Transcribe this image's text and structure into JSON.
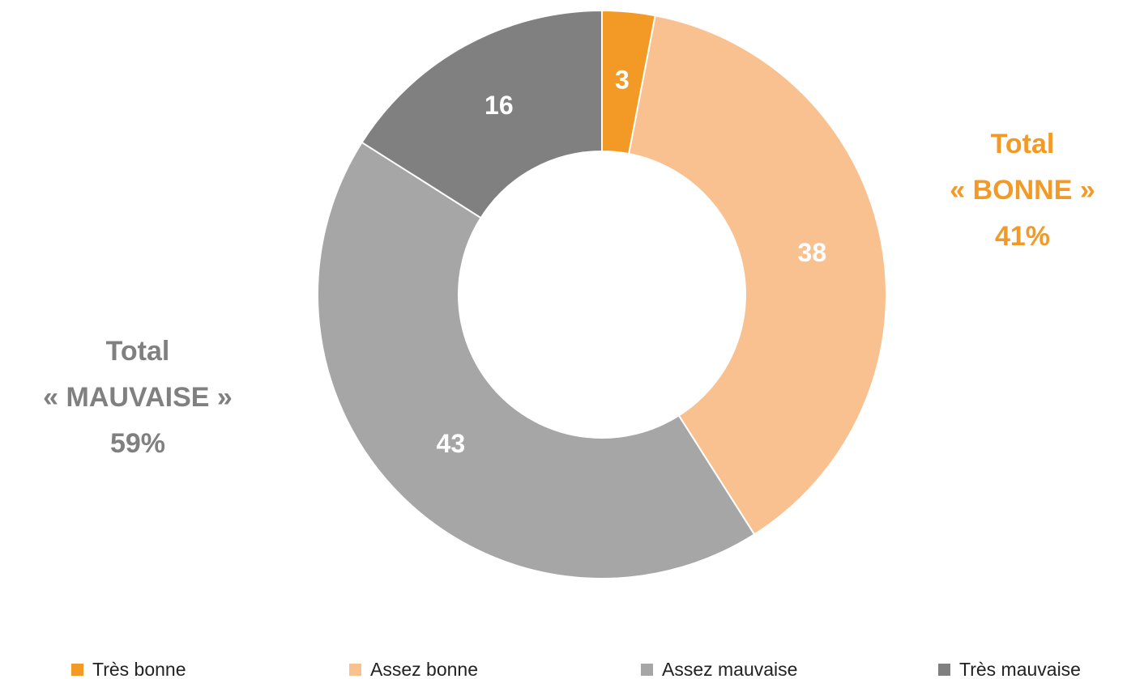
{
  "chart_data": {
    "type": "donut",
    "categories": [
      "Très bonne",
      "Assez bonne",
      "Assez mauvaise",
      "Très mauvaise"
    ],
    "values": [
      3,
      38,
      43,
      16
    ],
    "colors": [
      "#f39a26",
      "#f9c190",
      "#a6a6a6",
      "#808080"
    ],
    "legend": "bottom",
    "annotations": [
      {
        "lines": [
          "Total",
          "« BONNE »",
          "41%"
        ],
        "color": "#f39a26"
      },
      {
        "lines": [
          "Total",
          "« MAUVAISE »",
          "59%"
        ],
        "color": "#808080"
      }
    ]
  }
}
